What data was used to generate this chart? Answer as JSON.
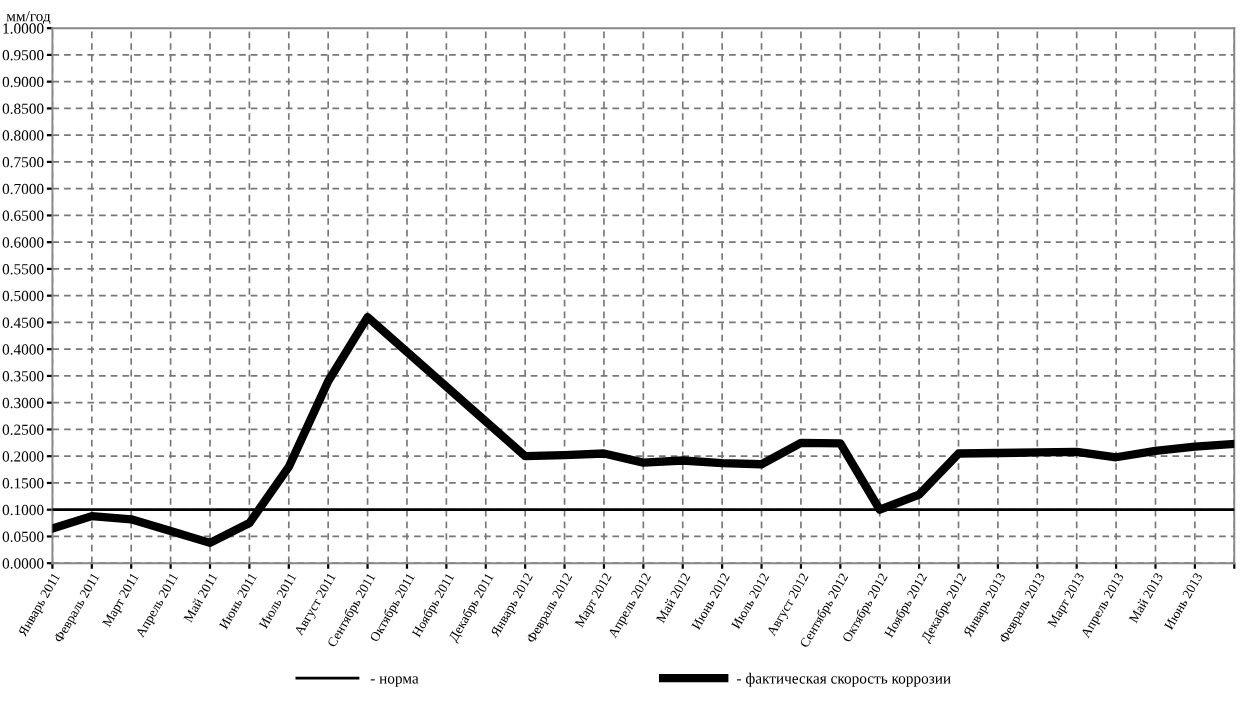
{
  "chart_data": {
    "type": "line",
    "ylabel": "мм/год",
    "categories": [
      "Январь 2011",
      "Февраль 2011",
      "Март 2011",
      "Апрель 2011",
      "Май 2011",
      "Июнь 2011",
      "Июль 2011",
      "Август 2011",
      "Сентябрь 2011",
      "Октябрь 2011",
      "Ноябрь 2011",
      "Декабрь 2011",
      "Январь 2012",
      "Февраль 2012",
      "Март 2012",
      "Апрель 2012",
      "Май 2012",
      "Июнь 2012",
      "Июль 2012",
      "Август 2012",
      "Сентябрь 2012",
      "Октябрь 2012",
      "Ноябрь 2012",
      "Декабрь 2012",
      "Январь 2013",
      "Февраль 2013",
      "Март 2013",
      "Апрель 2013",
      "Май 2013",
      "Июнь 2013",
      null
    ],
    "series": [
      {
        "name": "- норма",
        "color": "#000000",
        "values": [
          0.1,
          0.1,
          0.1,
          0.1,
          0.1,
          0.1,
          0.1,
          0.1,
          0.1,
          0.1,
          0.1,
          0.1,
          0.1,
          0.1,
          0.1,
          0.1,
          0.1,
          0.1,
          0.1,
          0.1,
          0.1,
          0.1,
          0.1,
          0.1,
          0.1,
          0.1,
          0.1,
          0.1,
          0.1,
          0.1,
          0.1
        ]
      },
      {
        "name": "- фактическая скорость коррозии",
        "color": "#000000",
        "values": [
          0.065,
          0.088,
          0.082,
          0.06,
          0.038,
          0.075,
          0.18,
          0.34,
          0.46,
          0.395,
          0.33,
          0.265,
          0.2,
          0.202,
          0.205,
          0.188,
          0.192,
          0.187,
          0.185,
          0.225,
          0.224,
          0.1,
          0.128,
          0.205,
          0.206,
          0.207,
          0.208,
          0.198,
          0.21,
          0.218,
          0.223
        ]
      }
    ],
    "ylim": [
      0,
      1
    ],
    "yticks": [
      {
        "value": 0,
        "label": "0.0000"
      },
      {
        "value": 0.05,
        "label": "0.0500"
      },
      {
        "value": 0.1,
        "label": "0.1000"
      },
      {
        "value": 0.15,
        "label": "0.1500"
      },
      {
        "value": 0.2,
        "label": "0.2000"
      },
      {
        "value": 0.25,
        "label": "0.2500"
      },
      {
        "value": 0.3,
        "label": "0.3000"
      },
      {
        "value": 0.35,
        "label": "0.3500"
      },
      {
        "value": 0.4,
        "label": "0.4000"
      },
      {
        "value": 0.45,
        "label": "0.4500"
      },
      {
        "value": 0.5,
        "label": "0.5000"
      },
      {
        "value": 0.55,
        "label": "0.5500"
      },
      {
        "value": 0.6,
        "label": "0.6000"
      },
      {
        "value": 0.65,
        "label": "0.6500"
      },
      {
        "value": 0.7,
        "label": "0.7000"
      },
      {
        "value": 0.75,
        "label": "0.7500"
      },
      {
        "value": 0.8,
        "label": "0.8000"
      },
      {
        "value": 0.85,
        "label": "0.8500"
      },
      {
        "value": 0.9,
        "label": "0.9000"
      },
      {
        "value": 0.95,
        "label": "0.9500"
      },
      {
        "value": 1,
        "label": "1.0000"
      }
    ],
    "grid": true,
    "line_style": "solid",
    "marker": "none",
    "legend": "bottom"
  }
}
